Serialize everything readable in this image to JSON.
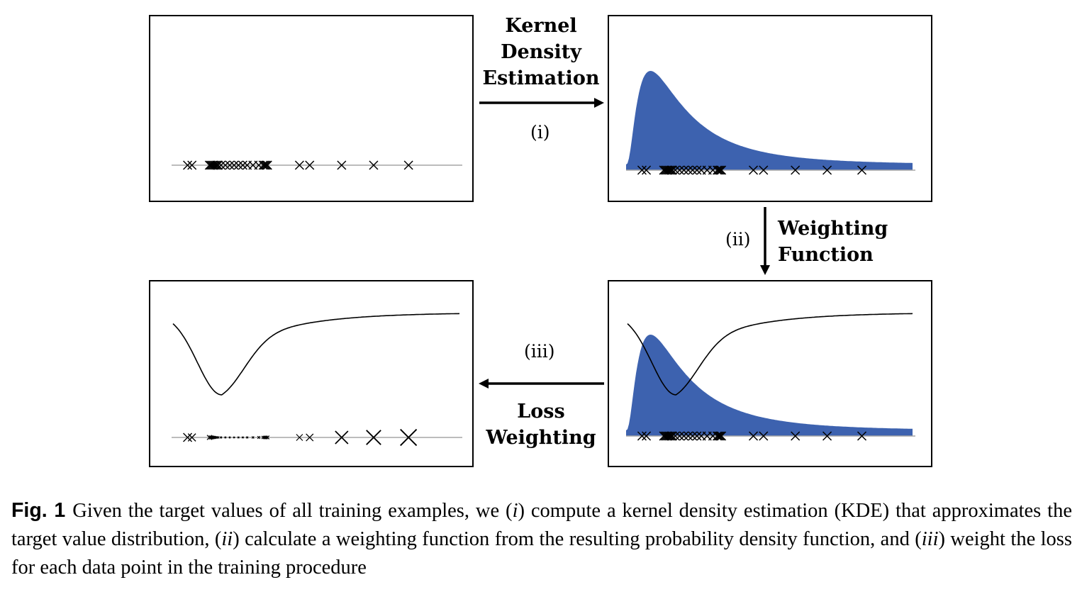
{
  "steps": {
    "kde": {
      "number": "(i)",
      "title_lines": [
        "Kernel",
        "Density",
        "Estimation"
      ]
    },
    "weighting": {
      "number": "(ii)",
      "title_lines": [
        "Weighting",
        "Function"
      ]
    },
    "loss": {
      "number": "(iii)",
      "title_lines": [
        "Loss",
        "Weighting"
      ]
    }
  },
  "caption": {
    "fig_label": "Fig. 1",
    "parts": [
      "Given the target values of all training examples, we (",
      "i",
      ") compute a kernel density estimation (KDE) that approximates the target value distribution, (",
      "ii",
      ") calculate a weighting function from the resulting probability density function, and (",
      "iii",
      ") weight the loss for each data point in the training procedure"
    ]
  },
  "colors": {
    "density_fill": "#3D62AF",
    "axis": "#a6a6a6",
    "ink": "#000000"
  },
  "icons": {
    "sample_marker": "x-mark",
    "arrow": "arrow-head"
  },
  "samples": [
    0.055,
    0.07,
    0.13,
    0.135,
    0.14,
    0.145,
    0.15,
    0.155,
    0.16,
    0.17,
    0.185,
    0.2,
    0.215,
    0.23,
    0.245,
    0.26,
    0.28,
    0.3,
    0.315,
    0.32,
    0.325,
    0.33,
    0.44,
    0.475,
    0.585,
    0.695,
    0.815
  ],
  "loss_marker_weights": [
    1.0,
    0.9,
    0.55,
    0.45,
    0.4,
    0.35,
    0.3,
    0.27,
    0.25,
    0.22,
    0.2,
    0.19,
    0.18,
    0.19,
    0.2,
    0.22,
    0.25,
    0.3,
    0.34,
    0.36,
    0.38,
    0.4,
    0.75,
    0.85,
    1.5,
    1.7,
    1.9
  ]
}
